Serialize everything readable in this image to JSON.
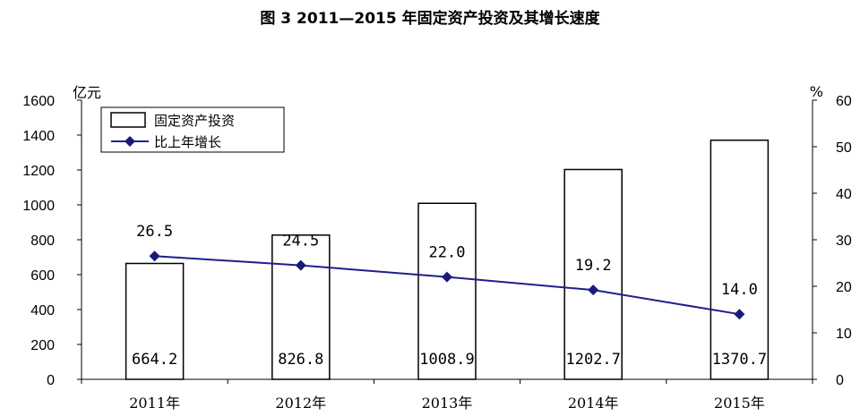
{
  "chart_data": {
    "type": "bar",
    "title": "图 3  2011—2015 年固定资产投资及其增长速度",
    "categories": [
      "2011年",
      "2012年",
      "2013年",
      "2014年",
      "2015年"
    ],
    "series": [
      {
        "name": "固定资产投资",
        "type": "bar",
        "axis": "left",
        "values": [
          664.2,
          826.8,
          1008.9,
          1202.7,
          1370.7
        ],
        "labels": [
          "664.2",
          "826.8",
          "1008.9",
          "1202.7",
          "1370.7"
        ]
      },
      {
        "name": "比上年增长",
        "type": "line",
        "axis": "right",
        "values": [
          26.5,
          24.5,
          22.0,
          19.2,
          14.0
        ],
        "labels": [
          "26.5",
          "24.5",
          "22.0",
          "19.2",
          "14.0"
        ]
      }
    ],
    "y_left": {
      "unit": "亿元",
      "ylim": [
        0,
        1600
      ],
      "ticks": [
        "0",
        "200",
        "400",
        "600",
        "800",
        "1000",
        "1200",
        "1400",
        "1600"
      ]
    },
    "y_right": {
      "unit": "%",
      "ylim": [
        0,
        60
      ],
      "ticks": [
        "0",
        "10",
        "20",
        "30",
        "40",
        "50",
        "60"
      ]
    },
    "grid": false,
    "legend_position": "top-left",
    "colors": {
      "bar_fill": "#ffffff",
      "bar_stroke": "#000000",
      "line": "#1f1f8c",
      "marker": "#1a1a7a"
    }
  }
}
